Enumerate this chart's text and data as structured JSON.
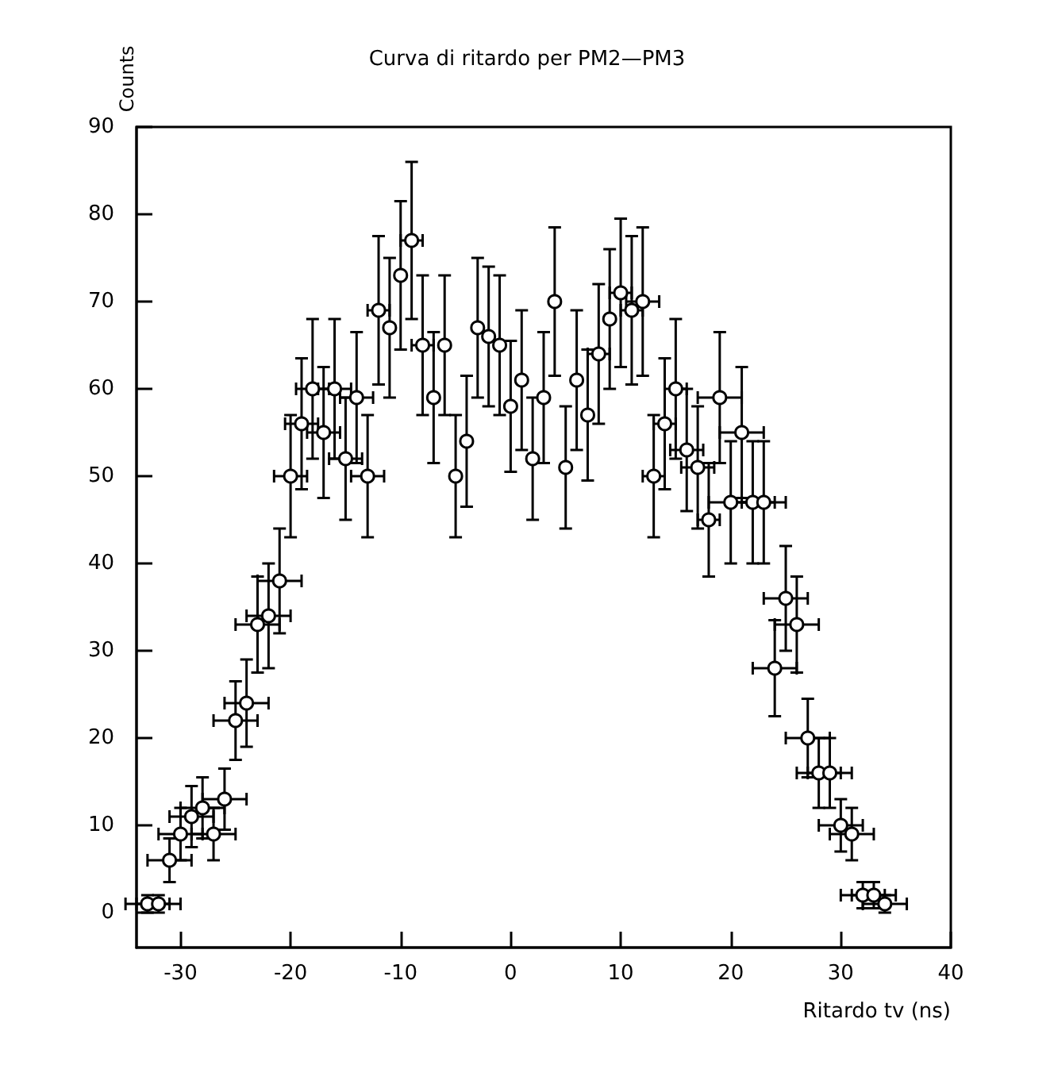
{
  "chart_data": {
    "type": "scatter",
    "title": "Curva di ritardo per PM2—PM3",
    "xlabel": "Ritardo tv (ns)",
    "ylabel": "Counts",
    "x": [
      -33,
      -32,
      -31,
      -30,
      -29,
      -28,
      -27,
      -26,
      -25,
      -24,
      -23,
      -22,
      -21,
      -20,
      -19,
      -18,
      -17,
      -16,
      -15,
      -14,
      -13,
      -12,
      -11,
      -10,
      -9,
      -8,
      -7,
      -6,
      -5,
      -4,
      -3,
      -2,
      -1,
      0,
      1,
      2,
      3,
      4,
      5,
      6,
      7,
      8,
      9,
      10,
      11,
      12,
      13,
      14,
      15,
      16,
      17,
      18,
      19,
      20,
      21,
      22,
      23,
      24,
      25,
      26,
      27,
      28,
      29,
      30,
      31,
      32,
      33,
      34
    ],
    "values": [
      1,
      1,
      6,
      9,
      11,
      12,
      9,
      13,
      22,
      24,
      33,
      34,
      38,
      50,
      56,
      60,
      55,
      60,
      52,
      59,
      50,
      69,
      67,
      73,
      77,
      65,
      59,
      65,
      50,
      54,
      67,
      66,
      65,
      58,
      61,
      52,
      59,
      70,
      51,
      61,
      57,
      64,
      68,
      71,
      69,
      70,
      50,
      56,
      60,
      53,
      51,
      45,
      59,
      47,
      55,
      47,
      47,
      28,
      36,
      33,
      20,
      16,
      16,
      10,
      9,
      2,
      2,
      1
    ],
    "errors": [
      1,
      1,
      2.5,
      3,
      3.5,
      3.5,
      3,
      3.5,
      4.5,
      5,
      5.5,
      6,
      6,
      7,
      7.5,
      8,
      7.5,
      8,
      7,
      7.5,
      7,
      8.5,
      8,
      8.5,
      9,
      8,
      7.5,
      8,
      7,
      7.5,
      8,
      8,
      8,
      7.5,
      8,
      7,
      7.5,
      8.5,
      7,
      8,
      7.5,
      8,
      8,
      8.5,
      8.5,
      8.5,
      7,
      7.5,
      8,
      7,
      7,
      6.5,
      7.5,
      7,
      7.5,
      7,
      7,
      5.5,
      6,
      5.5,
      4.5,
      4,
      4,
      3,
      3,
      1.5,
      1.5,
      1
    ],
    "xerrors": [
      2,
      2,
      2,
      2,
      2,
      2,
      2,
      2,
      2,
      2,
      2,
      2,
      2,
      1.5,
      1.5,
      1.5,
      1.5,
      1.5,
      1.5,
      1.5,
      1.5,
      1,
      null,
      null,
      1,
      1,
      null,
      null,
      null,
      null,
      null,
      null,
      null,
      null,
      null,
      null,
      null,
      null,
      null,
      null,
      null,
      1,
      null,
      1,
      1,
      1.5,
      1,
      1,
      1,
      1.5,
      1.5,
      1,
      2,
      2,
      2,
      2,
      2,
      2,
      2,
      2,
      2,
      2,
      2,
      2,
      2,
      2,
      2,
      2
    ],
    "color": "#000000",
    "marker": "circle",
    "grid": false,
    "xlim": [
      -34,
      40
    ],
    "xticks": [
      -30,
      -20,
      -10,
      0,
      10,
      20,
      30,
      40
    ],
    "ylim": [
      -4,
      90
    ],
    "yticks": [
      0,
      10,
      20,
      30,
      40,
      50,
      60,
      70,
      80,
      90
    ]
  }
}
